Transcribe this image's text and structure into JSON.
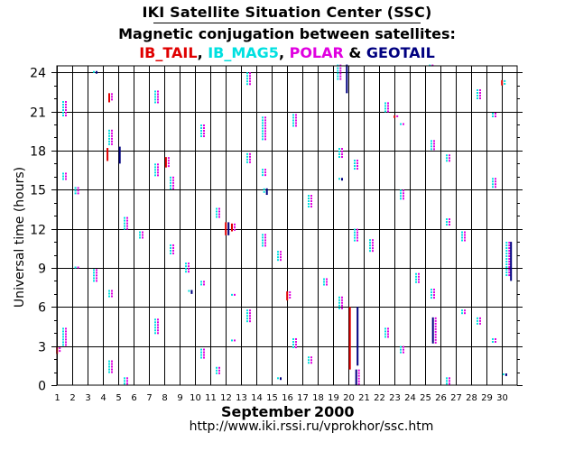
{
  "title": "IKI Satellite Situation Center (SSC)",
  "subtitle": "Magnetic conjugation between satellites:",
  "legend": {
    "items": [
      {
        "label": "IB_TAIL",
        "color": "#e00000",
        "sep": ", "
      },
      {
        "label": "IB_MAG5",
        "color": "#00e0e0",
        "sep": ", "
      },
      {
        "label": "POLAR",
        "color": "#e000e0",
        "sep": " & "
      },
      {
        "label": "GEOTAIL",
        "color": "#000080",
        "sep": ""
      }
    ]
  },
  "chart_data": {
    "type": "scatter",
    "title": "Magnetic conjugation between satellites",
    "xlabel": "September",
    "xlabel_year": "2000",
    "ylabel": "Universal time (hours)",
    "xlim": [
      1,
      31
    ],
    "ylim": [
      0,
      24.5
    ],
    "x_ticks": [
      1,
      2,
      3,
      4,
      5,
      6,
      7,
      8,
      9,
      10,
      11,
      12,
      13,
      14,
      15,
      16,
      17,
      18,
      19,
      20,
      21,
      22,
      23,
      24,
      25,
      26,
      27,
      28,
      29,
      30
    ],
    "y_ticks": [
      0,
      3,
      6,
      9,
      12,
      15,
      18,
      21,
      24
    ],
    "footer_url": "http://www.iki.rssi.ru/vprokhor/ssc.htm",
    "series": [
      {
        "name": "IB_MAG5",
        "color": "#00e0e0",
        "offset": -1
      },
      {
        "name": "POLAR",
        "color": "#e000e0",
        "offset": 1
      },
      {
        "name": "IB_TAIL",
        "color": "#e00000",
        "offset": 0
      },
      {
        "name": "GEOTAIL",
        "color": "#000080",
        "offset": 0
      }
    ],
    "conjunctions": [
      {
        "day": 1.1,
        "start": 2.4,
        "end": 2.9,
        "series": [
          "IB_TAIL",
          "POLAR"
        ]
      },
      {
        "day": 1.5,
        "start": 3.0,
        "end": 4.4,
        "series": [
          "IB_MAG5",
          "POLAR"
        ]
      },
      {
        "day": 1.5,
        "start": 15.6,
        "end": 16.3,
        "series": [
          "IB_MAG5",
          "POLAR"
        ]
      },
      {
        "day": 1.5,
        "start": 20.6,
        "end": 21.8,
        "series": [
          "IB_MAG5",
          "POLAR"
        ]
      },
      {
        "day": 2.3,
        "start": 14.5,
        "end": 15.2,
        "series": [
          "IB_MAG5",
          "POLAR"
        ]
      },
      {
        "day": 2.3,
        "start": 9.0,
        "end": 9.1,
        "series": [
          "IB_MAG5",
          "POLAR"
        ]
      },
      {
        "day": 3.5,
        "start": 7.8,
        "end": 8.9,
        "series": [
          "IB_MAG5",
          "POLAR"
        ]
      },
      {
        "day": 3.5,
        "start": 23.9,
        "end": 24.1,
        "series": [
          "IB_MAG5",
          "GEOTAIL"
        ]
      },
      {
        "day": 4.3,
        "start": 17.2,
        "end": 18.2,
        "series": [
          "IB_TAIL"
        ]
      },
      {
        "day": 4.5,
        "start": 21.7,
        "end": 22.4,
        "series": [
          "IB_TAIL",
          "POLAR"
        ]
      },
      {
        "day": 4.5,
        "start": 18.3,
        "end": 19.6,
        "series": [
          "IB_MAG5",
          "POLAR"
        ]
      },
      {
        "day": 4.5,
        "start": 6.6,
        "end": 7.3,
        "series": [
          "IB_MAG5",
          "POLAR"
        ]
      },
      {
        "day": 4.5,
        "start": 0.9,
        "end": 1.9,
        "series": [
          "IB_MAG5",
          "POLAR"
        ]
      },
      {
        "day": 5.1,
        "start": 17.0,
        "end": 18.3,
        "series": [
          "GEOTAIL"
        ]
      },
      {
        "day": 5.5,
        "start": 11.9,
        "end": 12.9,
        "series": [
          "IB_MAG5",
          "POLAR"
        ]
      },
      {
        "day": 5.5,
        "start": 0.0,
        "end": 0.6,
        "series": [
          "IB_MAG5",
          "POLAR"
        ]
      },
      {
        "day": 6.5,
        "start": 11.2,
        "end": 11.8,
        "series": [
          "IB_MAG5",
          "POLAR"
        ]
      },
      {
        "day": 7.5,
        "start": 21.5,
        "end": 22.6,
        "series": [
          "IB_MAG5",
          "POLAR"
        ]
      },
      {
        "day": 7.5,
        "start": 16.0,
        "end": 17.0,
        "series": [
          "IB_MAG5",
          "POLAR"
        ]
      },
      {
        "day": 7.5,
        "start": 3.9,
        "end": 5.1,
        "series": [
          "IB_MAG5",
          "POLAR"
        ]
      },
      {
        "day": 8.2,
        "start": 16.7,
        "end": 17.5,
        "series": [
          "IB_TAIL",
          "POLAR"
        ]
      },
      {
        "day": 8.5,
        "start": 15.0,
        "end": 16.0,
        "series": [
          "IB_MAG5",
          "POLAR"
        ]
      },
      {
        "day": 8.5,
        "start": 10.0,
        "end": 10.8,
        "series": [
          "IB_MAG5",
          "POLAR"
        ]
      },
      {
        "day": 9.5,
        "start": 8.5,
        "end": 9.4,
        "series": [
          "IB_MAG5",
          "POLAR"
        ]
      },
      {
        "day": 9.7,
        "start": 7.0,
        "end": 7.3,
        "series": [
          "IB_MAG5",
          "GEOTAIL"
        ]
      },
      {
        "day": 10.5,
        "start": 7.5,
        "end": 8.0,
        "series": [
          "IB_MAG5",
          "POLAR"
        ]
      },
      {
        "day": 10.5,
        "start": 2.0,
        "end": 2.8,
        "series": [
          "IB_MAG5",
          "POLAR"
        ]
      },
      {
        "day": 10.5,
        "start": 19.0,
        "end": 20.0,
        "series": [
          "IB_MAG5",
          "POLAR"
        ]
      },
      {
        "day": 11.5,
        "start": 12.8,
        "end": 13.6,
        "series": [
          "IB_MAG5",
          "POLAR"
        ]
      },
      {
        "day": 11.5,
        "start": 0.8,
        "end": 1.4,
        "series": [
          "IB_MAG5",
          "POLAR"
        ]
      },
      {
        "day": 12.1,
        "start": 11.5,
        "end": 12.5,
        "series": [
          "IB_TAIL",
          "GEOTAIL"
        ]
      },
      {
        "day": 12.5,
        "start": 11.8,
        "end": 12.4,
        "series": [
          "IB_TAIL",
          "POLAR"
        ]
      },
      {
        "day": 12.5,
        "start": 6.8,
        "end": 7.0,
        "series": [
          "IB_MAG5",
          "POLAR"
        ]
      },
      {
        "day": 12.5,
        "start": 3.2,
        "end": 3.5,
        "series": [
          "IB_MAG5",
          "POLAR"
        ]
      },
      {
        "day": 13.5,
        "start": 22.9,
        "end": 24.0,
        "series": [
          "IB_MAG5",
          "POLAR"
        ]
      },
      {
        "day": 13.5,
        "start": 17.0,
        "end": 17.8,
        "series": [
          "IB_MAG5",
          "POLAR"
        ]
      },
      {
        "day": 13.5,
        "start": 4.8,
        "end": 5.8,
        "series": [
          "IB_MAG5",
          "POLAR"
        ]
      },
      {
        "day": 14.5,
        "start": 18.8,
        "end": 20.6,
        "series": [
          "IB_MAG5",
          "POLAR"
        ]
      },
      {
        "day": 14.5,
        "start": 16.0,
        "end": 16.6,
        "series": [
          "IB_MAG5",
          "POLAR"
        ]
      },
      {
        "day": 14.5,
        "start": 10.6,
        "end": 11.6,
        "series": [
          "IB_MAG5",
          "POLAR"
        ]
      },
      {
        "day": 14.6,
        "start": 14.6,
        "end": 15.1,
        "series": [
          "IB_MAG5",
          "GEOTAIL"
        ]
      },
      {
        "day": 15.5,
        "start": 9.5,
        "end": 10.3,
        "series": [
          "IB_MAG5",
          "POLAR"
        ]
      },
      {
        "day": 15.5,
        "start": 0.4,
        "end": 0.6,
        "series": [
          "IB_MAG5",
          "GEOTAIL"
        ]
      },
      {
        "day": 16.1,
        "start": 6.5,
        "end": 7.2,
        "series": [
          "IB_TAIL",
          "POLAR"
        ]
      },
      {
        "day": 16.5,
        "start": 19.8,
        "end": 20.8,
        "series": [
          "IB_MAG5",
          "POLAR"
        ]
      },
      {
        "day": 16.5,
        "start": 2.8,
        "end": 3.6,
        "series": [
          "IB_MAG5",
          "POLAR"
        ]
      },
      {
        "day": 17.5,
        "start": 13.6,
        "end": 14.6,
        "series": [
          "IB_MAG5",
          "POLAR"
        ]
      },
      {
        "day": 17.5,
        "start": 1.5,
        "end": 2.2,
        "series": [
          "IB_MAG5",
          "POLAR"
        ]
      },
      {
        "day": 18.5,
        "start": 7.5,
        "end": 8.2,
        "series": [
          "IB_MAG5",
          "POLAR"
        ]
      },
      {
        "day": 19.4,
        "start": 23.3,
        "end": 24.6,
        "series": [
          "IB_MAG5",
          "POLAR"
        ]
      },
      {
        "day": 19.5,
        "start": 17.3,
        "end": 18.2,
        "series": [
          "IB_MAG5",
          "POLAR"
        ]
      },
      {
        "day": 19.5,
        "start": 5.8,
        "end": 6.8,
        "series": [
          "IB_MAG5",
          "POLAR"
        ]
      },
      {
        "day": 19.5,
        "start": 15.7,
        "end": 15.9,
        "series": [
          "IB_MAG5",
          "GEOTAIL"
        ]
      },
      {
        "day": 19.9,
        "start": 22.4,
        "end": 24.6,
        "series": [
          "GEOTAIL"
        ]
      },
      {
        "day": 20.1,
        "start": 1.2,
        "end": 6.0,
        "series": [
          "IB_TAIL"
        ]
      },
      {
        "day": 20.5,
        "start": 16.5,
        "end": 17.3,
        "series": [
          "IB_MAG5",
          "POLAR"
        ]
      },
      {
        "day": 20.5,
        "start": 11.0,
        "end": 12.0,
        "series": [
          "IB_MAG5",
          "POLAR"
        ]
      },
      {
        "day": 20.6,
        "start": 1.5,
        "end": 6.0,
        "series": [
          "GEOTAIL"
        ]
      },
      {
        "day": 20.6,
        "start": 0.0,
        "end": 1.2,
        "series": [
          "GEOTAIL",
          "POLAR"
        ]
      },
      {
        "day": 21.5,
        "start": 10.2,
        "end": 11.2,
        "series": [
          "IB_MAG5",
          "POLAR"
        ]
      },
      {
        "day": 22.5,
        "start": 20.8,
        "end": 21.7,
        "series": [
          "IB_MAG5",
          "POLAR"
        ]
      },
      {
        "day": 22.5,
        "start": 3.5,
        "end": 4.4,
        "series": [
          "IB_MAG5",
          "POLAR"
        ]
      },
      {
        "day": 23.1,
        "start": 20.5,
        "end": 20.7,
        "series": [
          "IB_TAIL",
          "POLAR"
        ]
      },
      {
        "day": 23.5,
        "start": 19.8,
        "end": 20.1,
        "series": [
          "IB_MAG5",
          "POLAR"
        ]
      },
      {
        "day": 23.5,
        "start": 14.2,
        "end": 15.0,
        "series": [
          "IB_MAG5",
          "POLAR"
        ]
      },
      {
        "day": 23.5,
        "start": 2.4,
        "end": 3.0,
        "series": [
          "IB_MAG5",
          "POLAR"
        ]
      },
      {
        "day": 24.5,
        "start": 7.8,
        "end": 8.6,
        "series": [
          "IB_MAG5",
          "POLAR"
        ]
      },
      {
        "day": 25.5,
        "start": 18.0,
        "end": 18.8,
        "series": [
          "IB_MAG5",
          "POLAR"
        ]
      },
      {
        "day": 25.5,
        "start": 6.6,
        "end": 7.4,
        "series": [
          "IB_MAG5",
          "POLAR"
        ]
      },
      {
        "day": 25.4,
        "start": 24.4,
        "end": 24.6,
        "series": [
          "IB_MAG5",
          "POLAR"
        ]
      },
      {
        "day": 25.6,
        "start": 3.2,
        "end": 5.2,
        "series": [
          "GEOTAIL",
          "POLAR"
        ]
      },
      {
        "day": 26.5,
        "start": 17.0,
        "end": 17.7,
        "series": [
          "IB_MAG5",
          "POLAR"
        ]
      },
      {
        "day": 26.5,
        "start": 12.2,
        "end": 12.8,
        "series": [
          "IB_MAG5",
          "POLAR"
        ]
      },
      {
        "day": 26.5,
        "start": 0.0,
        "end": 0.6,
        "series": [
          "IB_MAG5",
          "POLAR"
        ]
      },
      {
        "day": 27.5,
        "start": 11.0,
        "end": 11.8,
        "series": [
          "IB_MAG5",
          "POLAR"
        ]
      },
      {
        "day": 27.5,
        "start": 5.4,
        "end": 5.8,
        "series": [
          "IB_MAG5",
          "POLAR"
        ]
      },
      {
        "day": 28.5,
        "start": 21.8,
        "end": 22.7,
        "series": [
          "IB_MAG5",
          "POLAR"
        ]
      },
      {
        "day": 28.5,
        "start": 4.5,
        "end": 5.2,
        "series": [
          "IB_MAG5",
          "POLAR"
        ]
      },
      {
        "day": 29.5,
        "start": 20.5,
        "end": 20.9,
        "series": [
          "IB_MAG5",
          "POLAR"
        ]
      },
      {
        "day": 29.5,
        "start": 15.0,
        "end": 15.9,
        "series": [
          "IB_MAG5",
          "POLAR"
        ]
      },
      {
        "day": 29.5,
        "start": 3.2,
        "end": 3.6,
        "series": [
          "IB_MAG5",
          "POLAR"
        ]
      },
      {
        "day": 30.1,
        "start": 23.0,
        "end": 23.4,
        "series": [
          "IB_TAIL",
          "IB_MAG5"
        ]
      },
      {
        "day": 30.4,
        "start": 8.3,
        "end": 11.0,
        "series": [
          "IB_MAG5",
          "POLAR"
        ]
      },
      {
        "day": 30.6,
        "start": 8.0,
        "end": 11.0,
        "series": [
          "GEOTAIL"
        ]
      },
      {
        "day": 30.2,
        "start": 0.7,
        "end": 0.9,
        "series": [
          "IB_MAG5",
          "GEOTAIL"
        ]
      }
    ]
  }
}
